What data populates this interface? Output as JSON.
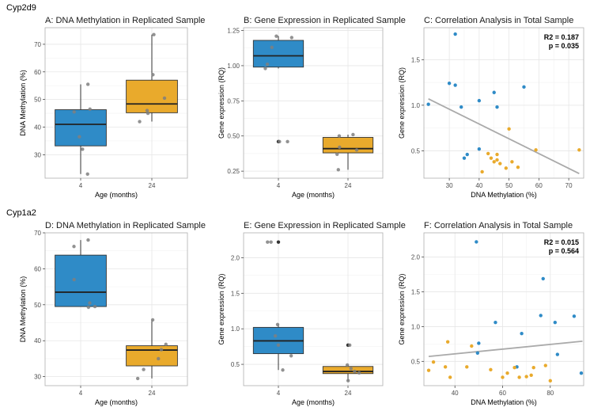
{
  "row_labels": [
    "Cyp2d9",
    "Cyp1a2"
  ],
  "colors": {
    "four_months": "#2F8BC7",
    "twentyfour_months": "#E9AA2C",
    "jitter": "#7F7F7F",
    "fit_line": "#AAAAAA",
    "grid": "#E6E6E6",
    "panel_border": "#B0B0B0"
  },
  "chart_data": [
    {
      "type": "box",
      "title": "A: DNA Methylation in Replicated Sample",
      "xlabel": "Age (months)",
      "ylabel": "DNA Methylation (%)",
      "categories": [
        "4",
        "24"
      ],
      "ylim": [
        21.5,
        76
      ],
      "yticks": [
        30,
        40,
        50,
        60,
        70
      ],
      "boxes": [
        {
          "min": 23,
          "q1": 33.2,
          "median": 41,
          "q3": 46.3,
          "max": 55.5
        },
        {
          "min": 42,
          "q1": 45.2,
          "median": 48.4,
          "q3": 57,
          "max": 73.5
        }
      ],
      "points": [
        {
          "group": 0,
          "values": [
            23,
            32,
            36.5,
            45.5,
            46.5,
            55.5
          ]
        },
        {
          "group": 1,
          "values": [
            42,
            45,
            46,
            50.5,
            59,
            73.5
          ]
        }
      ]
    },
    {
      "type": "box",
      "title": "B: Gene Expression in Replicated Sample",
      "xlabel": "Age (months)",
      "ylabel": "Gene expression (RQ)",
      "categories": [
        "4",
        "24"
      ],
      "ylim": [
        0.2,
        1.27
      ],
      "yticks": [
        0.25,
        0.5,
        0.75,
        1.0,
        1.25
      ],
      "yticklabels": [
        "0.25",
        "0.50",
        "0.75",
        "1.00",
        "1.25"
      ],
      "boxes": [
        {
          "min": 0.98,
          "q1": 0.99,
          "median": 1.07,
          "q3": 1.18,
          "max": 1.21
        },
        {
          "min": 0.26,
          "q1": 0.38,
          "median": 0.41,
          "q3": 0.49,
          "max": 0.51
        }
      ],
      "outliers": [
        {
          "group": 0,
          "values": [
            0.46
          ]
        }
      ],
      "points": [
        {
          "group": 0,
          "values": [
            0.46,
            0.46,
            0.98,
            1.01,
            1.13,
            1.2,
            1.21
          ]
        },
        {
          "group": 1,
          "values": [
            0.26,
            0.37,
            0.4,
            0.42,
            0.5,
            0.51
          ]
        }
      ]
    },
    {
      "type": "scatter",
      "title": "C: Correlation Analysis in Total Sample",
      "xlabel": "DNA Methylation (%)",
      "ylabel": "Gene expression (RQ)",
      "xlim": [
        21.5,
        75
      ],
      "ylim": [
        0.2,
        1.85
      ],
      "xticks": [
        30,
        40,
        50,
        60,
        70
      ],
      "yticks": [
        0.5,
        1.0,
        1.5
      ],
      "yticklabels": [
        "0.5",
        "1.0",
        "1.5"
      ],
      "annotations": [
        "R2 = 0.187",
        "p = 0.035"
      ],
      "fit_line": {
        "x": [
          23,
          73.5
        ],
        "y": [
          1.07,
          0.25
        ]
      },
      "series": [
        {
          "group": "4",
          "x": [
            23,
            30,
            32,
            32,
            34,
            35,
            36,
            40,
            40,
            45,
            46,
            55
          ],
          "y": [
            1.01,
            1.24,
            1.78,
            1.22,
            0.98,
            0.42,
            0.46,
            0.52,
            1.05,
            1.14,
            0.98,
            1.2
          ]
        },
        {
          "group": "24",
          "x": [
            41,
            43,
            44,
            45,
            46,
            46,
            47,
            49,
            50,
            51,
            53,
            59,
            73.5
          ],
          "y": [
            0.27,
            0.47,
            0.42,
            0.38,
            0.46,
            0.4,
            0.36,
            0.31,
            0.74,
            0.38,
            0.32,
            0.51,
            0.51
          ]
        }
      ]
    },
    {
      "type": "box",
      "title": "D: DNA Methylation in Replicated Sample",
      "xlabel": "Age (months)",
      "ylabel": "DNA Methylation (%)",
      "categories": [
        "4",
        "24"
      ],
      "ylim": [
        27.5,
        70
      ],
      "yticks": [
        30,
        40,
        50,
        60,
        70
      ],
      "boxes": [
        {
          "min": 49.5,
          "q1": 49.5,
          "median": 53.5,
          "q3": 63.8,
          "max": 68
        },
        {
          "min": 29.5,
          "q1": 33,
          "median": 37.4,
          "q3": 38.6,
          "max": 45.7
        }
      ],
      "points": [
        {
          "group": 0,
          "values": [
            49.3,
            49.5,
            50.5,
            57,
            66.2,
            68
          ]
        },
        {
          "group": 1,
          "values": [
            29.5,
            32,
            35,
            37.5,
            39,
            45.8
          ]
        }
      ]
    },
    {
      "type": "box",
      "title": "E: Gene Expression in Replicated Sample",
      "xlabel": "Age (months)",
      "ylabel": "Gene expression (RQ)",
      "categories": [
        "4",
        "24"
      ],
      "ylim": [
        0.2,
        2.35
      ],
      "yticks": [
        0.5,
        1.0,
        1.5,
        2.0
      ],
      "yticklabels": [
        "0.5",
        "1.0",
        "1.5",
        "2.0"
      ],
      "boxes": [
        {
          "min": 0.42,
          "q1": 0.65,
          "median": 0.83,
          "q3": 1.02,
          "max": 1.06
        },
        {
          "min": 0.27,
          "q1": 0.37,
          "median": 0.4,
          "q3": 0.47,
          "max": 0.49
        }
      ],
      "outliers": [
        {
          "group": 0,
          "values": [
            2.22
          ]
        },
        {
          "group": 1,
          "values": [
            0.77
          ]
        }
      ],
      "points": [
        {
          "group": 0,
          "values": [
            0.42,
            0.62,
            0.77,
            0.9,
            1.06,
            2.22,
            2.22
          ]
        },
        {
          "group": 1,
          "values": [
            0.27,
            0.38,
            0.4,
            0.44,
            0.49,
            0.77
          ]
        }
      ]
    },
    {
      "type": "scatter",
      "title": "F: Correlation Analysis in Total Sample",
      "xlabel": "DNA Methylation (%)",
      "ylabel": "Gene expression (RQ)",
      "xlim": [
        27,
        94
      ],
      "ylim": [
        0.15,
        2.35
      ],
      "xticks": [
        40,
        60,
        80
      ],
      "yticks": [
        0.5,
        1.0,
        1.5,
        2.0
      ],
      "yticklabels": [
        "0.5",
        "1.0",
        "1.5",
        "2.0"
      ],
      "annotations": [
        "R2 = 0.015",
        "p = 0.564"
      ],
      "fit_line": {
        "x": [
          29,
          93.5
        ],
        "y": [
          0.57,
          0.79
        ]
      },
      "series": [
        {
          "group": "4",
          "x": [
            49,
            49.5,
            50,
            57,
            66,
            68,
            76,
            77,
            82,
            83,
            90,
            93
          ],
          "y": [
            2.22,
            0.62,
            0.76,
            1.06,
            0.42,
            0.9,
            1.16,
            1.69,
            1.06,
            0.6,
            1.15,
            0.33
          ]
        },
        {
          "group": "24",
          "x": [
            29,
            31,
            36,
            37,
            38,
            45,
            47,
            55,
            60,
            62,
            65,
            67,
            70,
            72,
            73,
            78,
            80
          ],
          "y": [
            0.37,
            0.49,
            0.42,
            0.78,
            0.27,
            0.42,
            0.72,
            0.38,
            0.27,
            0.33,
            0.41,
            0.27,
            0.28,
            0.3,
            0.41,
            0.44,
            0.22
          ]
        }
      ]
    }
  ]
}
